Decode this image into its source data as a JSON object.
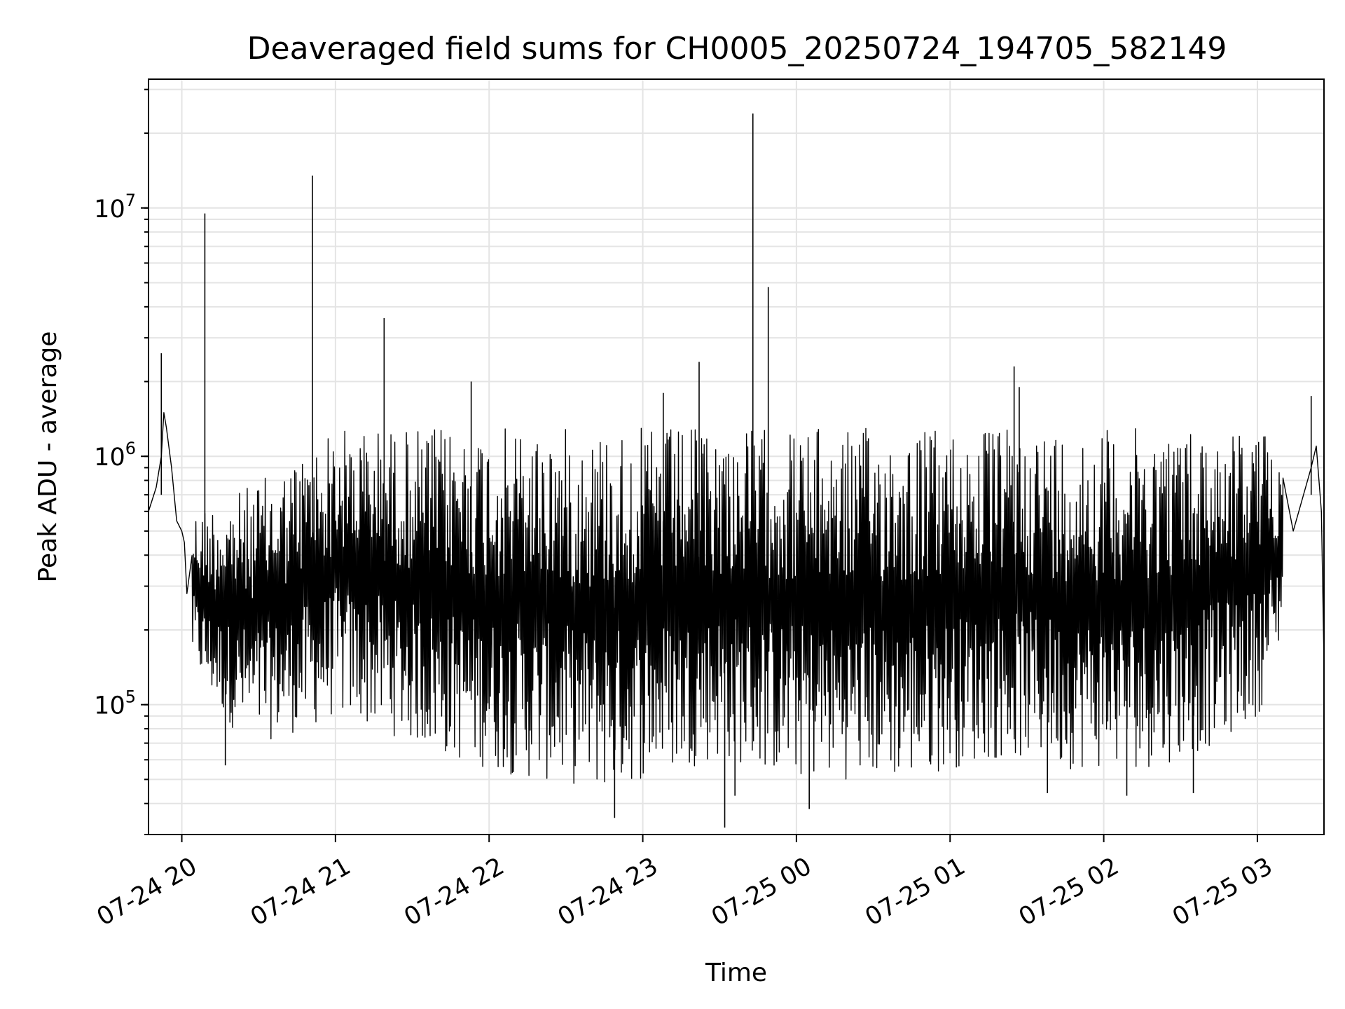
{
  "chart_data": {
    "type": "line",
    "title": "Deaveraged field sums for CH0005_20250724_194705_582149",
    "xlabel": "Time",
    "ylabel": "Peak ADU - average",
    "yscale": "log",
    "ylim": [
      30000,
      33000000
    ],
    "xlim": [
      "2025-07-24 19:47",
      "2025-07-25 03:26"
    ],
    "grid": true,
    "line_color": "#000000",
    "x_tick_labels": [
      "07-24 20",
      "07-24 21",
      "07-24 22",
      "07-24 23",
      "07-25 00",
      "07-25 01",
      "07-25 02",
      "07-25 03"
    ],
    "x_ticks": [
      "2025-07-24 20:00",
      "2025-07-24 21:00",
      "2025-07-24 22:00",
      "2025-07-24 23:00",
      "2025-07-25 00:00",
      "2025-07-25 01:00",
      "2025-07-25 02:00",
      "2025-07-25 03:00"
    ],
    "y_ticks": [
      {
        "value": 100000,
        "base": "10",
        "exp": "5"
      },
      {
        "value": 1000000,
        "base": "10",
        "exp": "6"
      },
      {
        "value": 10000000,
        "base": "10",
        "exp": "7"
      }
    ],
    "series": [
      {
        "x": [
          "2025-07-24 19:47",
          "2025-07-24 19:50",
          "2025-07-24 19:52",
          "2025-07-24 19:53",
          "2025-07-24 19:54",
          "2025-07-24 19:56",
          "2025-07-24 19:58",
          "2025-07-24 20:00",
          "2025-07-24 20:01",
          "2025-07-24 20:02",
          "2025-07-24 20:04",
          "2025-07-24 20:05",
          "2025-07-24 20:07",
          "2025-07-24 20:09",
          "2025-07-24 20:11",
          "2025-07-24 20:14",
          "2025-07-24 20:17",
          "2025-07-24 20:20",
          "2025-07-24 20:25",
          "2025-07-24 20:30",
          "2025-07-24 20:35",
          "2025-07-24 20:40",
          "2025-07-24 20:45",
          "2025-07-24 20:50",
          "2025-07-24 20:55",
          "2025-07-24 21:00",
          "2025-07-24 21:06",
          "2025-07-24 21:12",
          "2025-07-24 21:18",
          "2025-07-24 21:24",
          "2025-07-24 21:30",
          "2025-07-24 21:38",
          "2025-07-24 21:46",
          "2025-07-24 21:54",
          "2025-07-24 22:02",
          "2025-07-24 22:10",
          "2025-07-24 22:20",
          "2025-07-24 22:30",
          "2025-07-24 22:40",
          "2025-07-24 22:50",
          "2025-07-24 23:00",
          "2025-07-24 23:10",
          "2025-07-24 23:20",
          "2025-07-24 23:30",
          "2025-07-24 23:40",
          "2025-07-24 23:50",
          "2025-07-25 00:00",
          "2025-07-25 00:12",
          "2025-07-25 00:24",
          "2025-07-25 00:36",
          "2025-07-25 00:48",
          "2025-07-25 01:00",
          "2025-07-25 01:12",
          "2025-07-25 01:24",
          "2025-07-25 01:36",
          "2025-07-25 01:48",
          "2025-07-25 02:00",
          "2025-07-25 02:12",
          "2025-07-25 02:24",
          "2025-07-25 02:36",
          "2025-07-25 02:48",
          "2025-07-25 02:56",
          "2025-07-25 03:02",
          "2025-07-25 03:08",
          "2025-07-25 03:14",
          "2025-07-25 03:18",
          "2025-07-25 03:21",
          "2025-07-25 03:23",
          "2025-07-25 03:25",
          "2025-07-25 03:26"
        ],
        "y": [
          600000,
          750000,
          1000000,
          1500000,
          1300000,
          900000,
          550000,
          500000,
          450000,
          280000,
          230000,
          200000,
          180000,
          150000,
          160000,
          150000,
          170000,
          190000,
          220000,
          260000,
          300000,
          330000,
          360000,
          400000,
          420000,
          380000,
          400000,
          420000,
          380000,
          370000,
          350000,
          330000,
          300000,
          280000,
          270000,
          250000,
          230000,
          220000,
          200000,
          190000,
          180000,
          190000,
          200000,
          230000,
          250000,
          270000,
          300000,
          320000,
          330000,
          340000,
          320000,
          310000,
          330000,
          340000,
          300000,
          280000,
          260000,
          240000,
          220000,
          200000,
          190000,
          200000,
          230000,
          300000,
          500000,
          700000,
          900000,
          1100000,
          600000,
          150000
        ]
      }
    ],
    "envelope": {
      "x": [
        "2025-07-24 20:04",
        "2025-07-24 20:10",
        "2025-07-24 20:20",
        "2025-07-24 20:30",
        "2025-07-24 20:40",
        "2025-07-24 20:50",
        "2025-07-24 21:00",
        "2025-07-24 21:15",
        "2025-07-24 21:30",
        "2025-07-24 21:45",
        "2025-07-24 22:00",
        "2025-07-24 22:15",
        "2025-07-24 22:30",
        "2025-07-24 22:45",
        "2025-07-24 23:00",
        "2025-07-24 23:15",
        "2025-07-24 23:30",
        "2025-07-24 23:45",
        "2025-07-25 00:00",
        "2025-07-25 00:15",
        "2025-07-25 00:30",
        "2025-07-25 00:45",
        "2025-07-25 01:00",
        "2025-07-25 01:15",
        "2025-07-25 01:30",
        "2025-07-25 01:45",
        "2025-07-25 02:00",
        "2025-07-25 02:15",
        "2025-07-25 02:30",
        "2025-07-25 02:45",
        "2025-07-25 03:00",
        "2025-07-25 03:05",
        "2025-07-25 03:10"
      ],
      "upper": [
        600000,
        650000,
        700000,
        800000,
        900000,
        1100000,
        1300000,
        1300000,
        1300000,
        1300000,
        1300000,
        1300000,
        1300000,
        1300000,
        1300000,
        1300000,
        1300000,
        1300000,
        1300000,
        1300000,
        1300000,
        1300000,
        1300000,
        1300000,
        1300000,
        1300000,
        1300000,
        1300000,
        1300000,
        1300000,
        1300000,
        1200000,
        1000000
      ],
      "lower": [
        150000,
        110000,
        80000,
        70000,
        75000,
        80000,
        90000,
        80000,
        70000,
        60000,
        55000,
        50000,
        48000,
        45000,
        50000,
        55000,
        60000,
        55000,
        50000,
        50000,
        50000,
        50000,
        55000,
        60000,
        60000,
        55000,
        55000,
        55000,
        60000,
        70000,
        90000,
        120000,
        200000
      ]
    },
    "spikes": [
      {
        "x": "2025-07-24 19:52",
        "y": 2600000
      },
      {
        "x": "2025-07-24 20:09",
        "y": 9500000
      },
      {
        "x": "2025-07-24 20:51",
        "y": 13500000
      },
      {
        "x": "2025-07-24 21:19",
        "y": 3600000
      },
      {
        "x": "2025-07-24 21:53",
        "y": 2000000
      },
      {
        "x": "2025-07-24 23:08",
        "y": 1800000
      },
      {
        "x": "2025-07-24 23:22",
        "y": 2400000
      },
      {
        "x": "2025-07-24 23:43",
        "y": 24000000
      },
      {
        "x": "2025-07-24 23:49",
        "y": 4800000
      },
      {
        "x": "2025-07-25 01:25",
        "y": 2300000
      },
      {
        "x": "2025-07-25 01:27",
        "y": 1900000
      },
      {
        "x": "2025-07-25 03:21",
        "y": 1750000
      }
    ],
    "dips": [
      {
        "x": "2025-07-24 20:17",
        "y": 57000
      },
      {
        "x": "2025-07-24 22:49",
        "y": 35000
      },
      {
        "x": "2025-07-24 23:32",
        "y": 32000
      },
      {
        "x": "2025-07-24 23:36",
        "y": 43000
      },
      {
        "x": "2025-07-25 00:05",
        "y": 38000
      },
      {
        "x": "2025-07-25 01:38",
        "y": 44000
      },
      {
        "x": "2025-07-25 02:09",
        "y": 43000
      },
      {
        "x": "2025-07-25 02:35",
        "y": 44000
      }
    ]
  }
}
